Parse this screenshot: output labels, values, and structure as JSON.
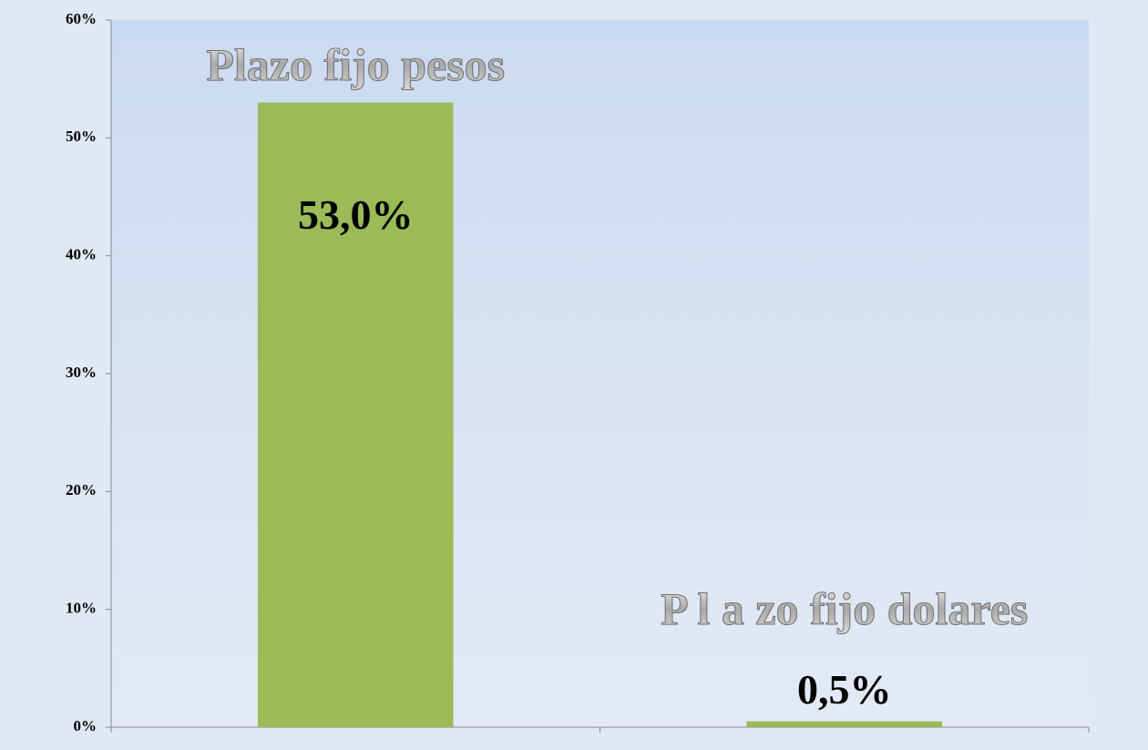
{
  "chart_data": {
    "type": "bar",
    "categories": [
      "Plazo fijo pesos",
      "P l a zo fijo dolares"
    ],
    "values": [
      53.0,
      0.5
    ],
    "value_labels": [
      "53,0%",
      "0,5%"
    ],
    "color": "#9bbb59",
    "ylim": [
      0,
      60
    ],
    "yticks": [
      {
        "value": 0,
        "label": "0%"
      },
      {
        "value": 10,
        "label": "10%"
      },
      {
        "value": 20,
        "label": "20%"
      },
      {
        "value": 30,
        "label": "30%"
      },
      {
        "value": 40,
        "label": "40%"
      },
      {
        "value": 50,
        "label": "50%"
      },
      {
        "value": 60,
        "label": "60%"
      }
    ]
  }
}
